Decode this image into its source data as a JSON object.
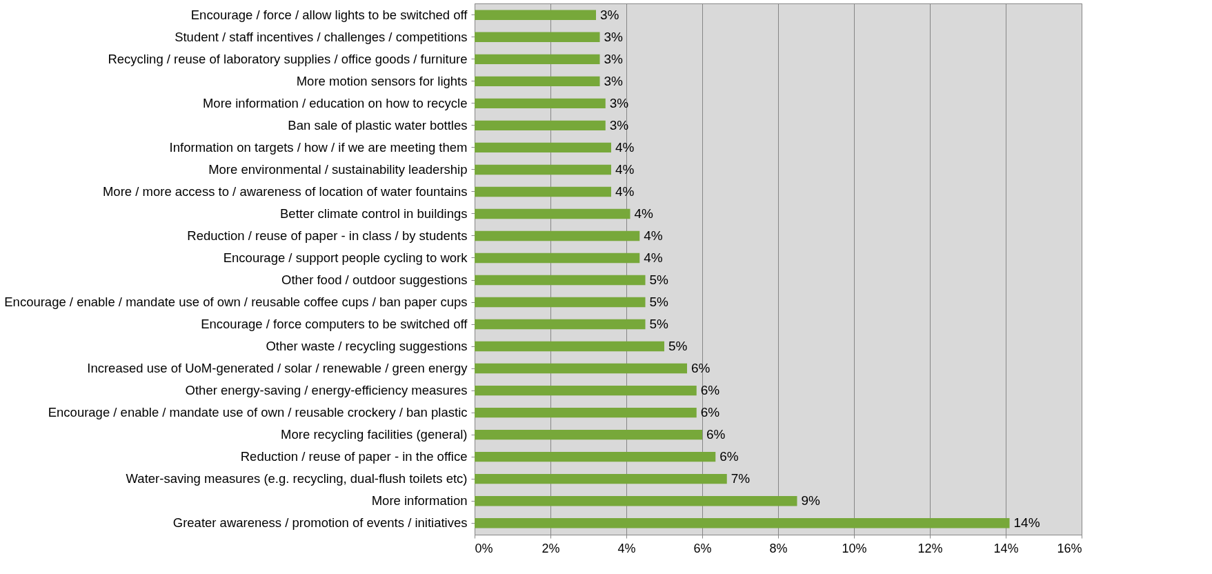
{
  "chart_data": {
    "type": "bar",
    "orientation": "horizontal",
    "categories": [
      "Encourage / force / allow lights to be switched off",
      "Student / staff incentives / challenges / competitions",
      "Recycling / reuse of laboratory supplies / office goods / furniture",
      "More motion sensors for lights",
      "More information / education on how to recycle",
      "Ban sale of plastic water bottles",
      "Information on targets / how / if we are meeting them",
      "More environmental / sustainability leadership",
      "More / more access to / awareness of location of water fountains",
      "Better climate control in buildings",
      "Reduction / reuse of paper - in class / by students",
      "Encourage / support people cycling to work",
      "Other food / outdoor suggestions",
      "Encourage / enable / mandate use of own / reusable coffee cups / ban paper cups",
      "Encourage / force computers to be switched off",
      "Other waste / recycling suggestions",
      "Increased use of UoM-generated / solar / renewable / green energy",
      "Other energy-saving / energy-efficiency measures",
      "Encourage / enable / mandate use of own / reusable crockery / ban plastic",
      "More recycling facilities (general)",
      "Reduction / reuse of paper - in the office",
      "Water-saving measures (e.g. recycling, dual-flush toilets etc)",
      "More information",
      "Greater awareness / promotion of events / initiatives"
    ],
    "values": [
      3.2,
      3.3,
      3.3,
      3.3,
      3.45,
      3.45,
      3.6,
      3.6,
      3.6,
      4.1,
      4.35,
      4.35,
      4.5,
      4.5,
      4.5,
      5.0,
      5.6,
      5.85,
      5.85,
      6.0,
      6.35,
      6.65,
      8.5,
      14.1
    ],
    "value_labels": [
      "3%",
      "3%",
      "3%",
      "3%",
      "3%",
      "3%",
      "4%",
      "4%",
      "4%",
      "4%",
      "4%",
      "4%",
      "5%",
      "5%",
      "5%",
      "5%",
      "6%",
      "6%",
      "6%",
      "6%",
      "6%",
      "7%",
      "9%",
      "14%"
    ],
    "color": "#77a83a",
    "xlim": [
      0,
      16
    ],
    "xticks": [
      {
        "value": 0,
        "label": "0%"
      },
      {
        "value": 2,
        "label": "2%"
      },
      {
        "value": 4,
        "label": "4%"
      },
      {
        "value": 6,
        "label": "6%"
      },
      {
        "value": 8,
        "label": "8%"
      },
      {
        "value": 10,
        "label": "10%"
      },
      {
        "value": 12,
        "label": "12%"
      },
      {
        "value": 14,
        "label": "14%"
      },
      {
        "value": 16,
        "label": "16%"
      }
    ],
    "grid": "x"
  }
}
